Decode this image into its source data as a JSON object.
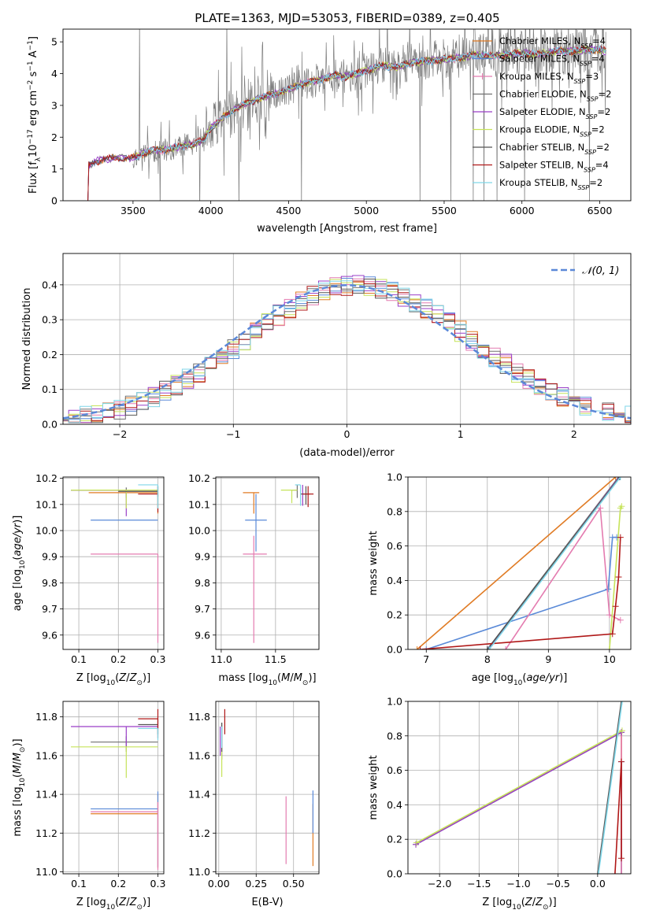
{
  "title": "PLATE=1363, MJD=53053, FIBERID=0389, z=0.405",
  "colors": {
    "Chabrier MILES": "#e07b24",
    "Salpeter MILES": "#5a8ad8",
    "Kroupa MILES": "#e47cb0",
    "Chabrier ELODIE": "#707070",
    "Salpeter ELODIE": "#9a3fc8",
    "Kroupa ELODIE": "#c6e35a",
    "Chabrier STELIB": "#555555",
    "Salpeter STELIB": "#b01818",
    "Kroupa STELIB": "#7fd6e8",
    "data": "#7f7f7f",
    "gauss": "#5b88d8"
  },
  "chart_data": [
    {
      "id": "spectrum",
      "type": "line",
      "xlabel": "wavelength [Angstrom, rest frame]",
      "ylabel": "Flux [f_λ 10^-17 erg cm^-2 s^-1 A^-1]",
      "xlim": [
        3050,
        6700
      ],
      "ylim": [
        0,
        5.4
      ],
      "xticks": [
        3500,
        4000,
        4500,
        5000,
        5500,
        6000,
        6500
      ],
      "yticks": [
        0,
        1,
        2,
        3,
        4,
        5
      ],
      "legend_position": "top-right",
      "legend": [
        "Chabrier MILES, N_SSP=4",
        "Salpeter MILES, N_SSP=4",
        "Kroupa MILES, N_SSP=3",
        "Chabrier ELODIE, N_SSP=2",
        "Salpeter ELODIE, N_SSP=2",
        "Kroupa ELODIE, N_SSP=2",
        "Chabrier STELIB, N_SSP=2",
        "Salpeter STELIB, N_SSP=4",
        "Kroupa STELIB, N_SSP=2"
      ],
      "continuum": {
        "x": [
          3210,
          3250,
          3300,
          3400,
          3500,
          3600,
          3700,
          3800,
          3900,
          3950,
          4000,
          4100,
          4200,
          4300,
          4400,
          4500,
          4600,
          4700,
          4800,
          4860,
          4900,
          5000,
          5100,
          5200,
          5300,
          5400,
          5500,
          5600,
          5700,
          5800,
          5900,
          6000,
          6100,
          6200,
          6300,
          6400,
          6500,
          6540
        ],
        "y": [
          1.1,
          1.2,
          1.3,
          1.35,
          1.35,
          1.55,
          1.6,
          1.7,
          1.8,
          1.9,
          2.3,
          2.7,
          3.0,
          3.2,
          3.35,
          3.5,
          3.7,
          3.8,
          3.95,
          3.9,
          3.95,
          4.1,
          4.25,
          4.2,
          4.35,
          4.4,
          4.45,
          4.5,
          4.6,
          4.55,
          4.6,
          4.65,
          4.6,
          4.7,
          4.7,
          4.75,
          4.75,
          4.7
        ]
      },
      "noise_region": [
        3500,
        6540
      ]
    },
    {
      "id": "residuals",
      "type": "bar",
      "style": "step histograms",
      "xlabel": "(data-model)/error",
      "ylabel": "Normed distribution",
      "xlim": [
        -2.5,
        2.5
      ],
      "ylim": [
        0,
        0.49
      ],
      "xticks": [
        -2,
        -1,
        0,
        1,
        2
      ],
      "yticks": [
        0.0,
        0.1,
        0.2,
        0.3,
        0.4
      ],
      "legend": [
        "𝒩(0, 1)"
      ],
      "legend_position": "top-right",
      "bin_width": 0.1,
      "reference": {
        "type": "normal",
        "mean": 0,
        "sigma": 1
      }
    },
    {
      "id": "age-vs-Z",
      "type": "scatter",
      "style": "error bars",
      "xlabel": "Z [log10(Z/Z_sun)]",
      "ylabel": "age [log10(age/yr)]",
      "xlim": [
        0.06,
        0.315
      ],
      "ylim": [
        9.545,
        10.205
      ],
      "xticks": [
        0.1,
        0.2,
        0.3
      ],
      "yticks": [
        9.6,
        9.7,
        9.8,
        9.9,
        10.0,
        10.1,
        10.2
      ],
      "points": [
        {
          "model": "Chabrier MILES",
          "x": 0.3,
          "y": 10.145,
          "xerr": [
            0.175,
            0
          ],
          "yerr": [
            0.08,
            0.0
          ]
        },
        {
          "model": "Salpeter MILES",
          "x": 0.3,
          "y": 10.04,
          "xerr": [
            0.17,
            0
          ],
          "yerr": [
            0,
            0
          ]
        },
        {
          "model": "Kroupa MILES",
          "x": 0.3,
          "y": 9.91,
          "xerr": [
            0.17,
            0
          ],
          "yerr": [
            0.34,
            0
          ]
        },
        {
          "model": "Chabrier ELODIE",
          "x": 0.22,
          "y": 10.155,
          "xerr": [
            0.14,
            0.08
          ],
          "yerr": [
            0.03,
            0.01
          ]
        },
        {
          "model": "Salpeter ELODIE",
          "x": 0.22,
          "y": 10.155,
          "xerr": [
            0.14,
            0.08
          ],
          "yerr": [
            0.1,
            0.0
          ]
        },
        {
          "model": "Kroupa ELODIE",
          "x": 0.22,
          "y": 10.155,
          "xerr": [
            0.14,
            0.08
          ],
          "yerr": [
            0.07,
            0.0
          ]
        },
        {
          "model": "Chabrier STELIB",
          "x": 0.3,
          "y": 10.15,
          "xerr": [
            0.1,
            0
          ],
          "yerr": [
            0.02,
            0.02
          ]
        },
        {
          "model": "Salpeter STELIB",
          "x": 0.3,
          "y": 10.14,
          "xerr": [
            0.05,
            0
          ],
          "yerr": [
            0.07,
            0.03
          ]
        },
        {
          "model": "Kroupa STELIB",
          "x": 0.3,
          "y": 10.175,
          "xerr": [
            0.05,
            0
          ],
          "yerr": [
            0.09,
            0.0
          ]
        }
      ]
    },
    {
      "id": "age-vs-mass",
      "type": "scatter",
      "style": "error bars",
      "xlabel": "mass [log10(M/M_sun)]",
      "ylabel": "",
      "xlim": [
        10.95,
        11.9
      ],
      "ylim": [
        9.545,
        10.205
      ],
      "xticks": [
        11.0,
        11.5
      ],
      "yticks": [
        9.6,
        9.7,
        9.8,
        9.9,
        10.0,
        10.1,
        10.2
      ],
      "points": [
        {
          "model": "Chabrier MILES",
          "x": 11.3,
          "y": 10.145,
          "xerr": [
            0.1,
            0.05
          ],
          "yerr": [
            0.08,
            0.0
          ]
        },
        {
          "model": "Salpeter MILES",
          "x": 11.32,
          "y": 10.04,
          "xerr": [
            0.1,
            0.1
          ],
          "yerr": [
            0.12,
            0.1
          ]
        },
        {
          "model": "Kroupa MILES",
          "x": 11.3,
          "y": 9.91,
          "xerr": [
            0.1,
            0.12
          ],
          "yerr": [
            0.34,
            0.07
          ]
        },
        {
          "model": "Chabrier ELODIE",
          "x": 11.7,
          "y": 10.155,
          "xerr": [
            0.05,
            0
          ],
          "yerr": [
            0.03,
            0.02
          ]
        },
        {
          "model": "Salpeter ELODIE",
          "x": 11.75,
          "y": 10.155,
          "xerr": [
            0,
            0
          ],
          "yerr": [
            0.06,
            0.02
          ]
        },
        {
          "model": "Kroupa ELODIE",
          "x": 11.65,
          "y": 10.155,
          "xerr": [
            0.1,
            0.05
          ],
          "yerr": [
            0.05,
            0.0
          ]
        },
        {
          "model": "Chabrier STELIB",
          "x": 11.78,
          "y": 10.14,
          "xerr": [
            0.05,
            0.04
          ],
          "yerr": [
            0.04,
            0.03
          ]
        },
        {
          "model": "Salpeter STELIB",
          "x": 11.8,
          "y": 10.14,
          "xerr": [
            0.05,
            0.05
          ],
          "yerr": [
            0.05,
            0.03
          ]
        },
        {
          "model": "Kroupa STELIB",
          "x": 11.73,
          "y": 10.175,
          "xerr": [
            0.05,
            0.0
          ],
          "yerr": [
            0.08,
            0.0
          ]
        }
      ]
    },
    {
      "id": "weight-vs-age",
      "type": "line",
      "style": "cumulative",
      "xlabel": "age [log10(age/yr)]",
      "ylabel": "mass weight",
      "xlim": [
        6.7,
        10.35
      ],
      "ylim": [
        0,
        1.0
      ],
      "xticks": [
        7,
        8,
        9,
        10
      ],
      "yticks": [
        0.0,
        0.2,
        0.4,
        0.6,
        0.8,
        1.0
      ],
      "series": [
        {
          "model": "Chabrier MILES",
          "x": [
            6.85,
            10.1
          ],
          "y": [
            0,
            1.0
          ]
        },
        {
          "model": "Salpeter MILES",
          "x": [
            7.0,
            9.98,
            10.05,
            10.12
          ],
          "y": [
            0,
            0.35,
            0.65,
            0.65
          ]
        },
        {
          "model": "Kroupa MILES",
          "x": [
            8.3,
            9.85,
            10.0,
            10.18
          ],
          "y": [
            0,
            0.82,
            0.2,
            0.17
          ]
        },
        {
          "model": "Chabrier ELODIE",
          "x": [
            8.0,
            10.15
          ],
          "y": [
            0,
            1.0
          ]
        },
        {
          "model": "Salpeter ELODIE",
          "x": [
            8.02,
            10.16
          ],
          "y": [
            0,
            1.0
          ]
        },
        {
          "model": "Kroupa ELODIE",
          "x": [
            10.0,
            10.18,
            10.2
          ],
          "y": [
            0,
            0.82,
            0.83
          ]
        },
        {
          "model": "Chabrier STELIB",
          "x": [
            8.0,
            10.17
          ],
          "y": [
            0,
            1.0
          ]
        },
        {
          "model": "Salpeter STELIB",
          "x": [
            6.9,
            10.05,
            10.1,
            10.15,
            10.18
          ],
          "y": [
            0,
            0.09,
            0.25,
            0.42,
            0.65
          ]
        },
        {
          "model": "Kroupa STELIB",
          "x": [
            8.03,
            10.18
          ],
          "y": [
            0,
            1.0
          ]
        }
      ]
    },
    {
      "id": "mass-vs-Z",
      "type": "scatter",
      "style": "error bars",
      "xlabel": "Z [log10(Z/Z_sun)]",
      "ylabel": "mass [log10(M/M_sun)]",
      "xlim": [
        0.06,
        0.315
      ],
      "ylim": [
        10.99,
        11.88
      ],
      "xticks": [
        0.1,
        0.2,
        0.3
      ],
      "yticks": [
        11.0,
        11.2,
        11.4,
        11.6,
        11.8
      ],
      "points": [
        {
          "model": "Chabrier MILES",
          "x": 0.3,
          "y": 11.3,
          "xerr": [
            0.17,
            0
          ],
          "yerr": [
            0.28,
            0.1
          ]
        },
        {
          "model": "Salpeter MILES",
          "x": 0.3,
          "y": 11.325,
          "xerr": [
            0.17,
            0
          ],
          "yerr": [
            0.3,
            0.09
          ]
        },
        {
          "model": "Kroupa MILES",
          "x": 0.3,
          "y": 11.31,
          "xerr": [
            0.17,
            0
          ],
          "yerr": [
            0.3,
            0.05
          ]
        },
        {
          "model": "Chabrier ELODIE",
          "x": 0.22,
          "y": 11.67,
          "xerr": [
            0.09,
            0.08
          ],
          "yerr": [
            0.05,
            0.03
          ]
        },
        {
          "model": "Salpeter ELODIE",
          "x": 0.22,
          "y": 11.75,
          "xerr": [
            0.14,
            0.08
          ],
          "yerr": [
            0.1,
            0.0
          ]
        },
        {
          "model": "Kroupa ELODIE",
          "x": 0.22,
          "y": 11.645,
          "xerr": [
            0.14,
            0.08
          ],
          "yerr": [
            0.16,
            0.0
          ]
        },
        {
          "model": "Chabrier STELIB",
          "x": 0.3,
          "y": 11.76,
          "xerr": [
            0.05,
            0
          ],
          "yerr": [
            0.05,
            0.03
          ]
        },
        {
          "model": "Salpeter STELIB",
          "x": 0.3,
          "y": 11.79,
          "xerr": [
            0.05,
            0
          ],
          "yerr": [
            0.1,
            0.05
          ]
        },
        {
          "model": "Kroupa STELIB",
          "x": 0.3,
          "y": 11.74,
          "xerr": [
            0.05,
            0
          ],
          "yerr": [
            0.06,
            0.0
          ]
        }
      ]
    },
    {
      "id": "mass-vs-EBV",
      "type": "scatter",
      "style": "error bars",
      "xlabel": "E(B-V)",
      "ylabel": "",
      "xlim": [
        -0.02,
        0.67
      ],
      "ylim": [
        10.99,
        11.88
      ],
      "xticks": [
        0.0,
        0.25,
        0.5
      ],
      "yticks": [
        11.0,
        11.2,
        11.4,
        11.6,
        11.8
      ],
      "points": [
        {
          "model": "Chabrier MILES",
          "x": 0.63,
          "y": 11.2,
          "xerr": [
            0,
            0
          ],
          "yerr": [
            0.17,
            0.15
          ]
        },
        {
          "model": "Salpeter MILES",
          "x": 0.63,
          "y": 11.3,
          "xerr": [
            0,
            0
          ],
          "yerr": [
            0.1,
            0.12
          ]
        },
        {
          "model": "Kroupa MILES",
          "x": 0.45,
          "y": 11.21,
          "xerr": [
            0,
            0
          ],
          "yerr": [
            0.17,
            0.18
          ]
        },
        {
          "model": "Chabrier ELODIE",
          "x": 0.02,
          "y": 11.68,
          "xerr": [
            0,
            0
          ],
          "yerr": [
            0.1,
            0.09
          ]
        },
        {
          "model": "Salpeter ELODIE",
          "x": 0.01,
          "y": 11.7,
          "xerr": [
            0,
            0
          ],
          "yerr": [
            0.1,
            0.05
          ]
        },
        {
          "model": "Kroupa ELODIE",
          "x": 0.02,
          "y": 11.6,
          "xerr": [
            0,
            0
          ],
          "yerr": [
            0.11,
            0.05
          ]
        },
        {
          "model": "Chabrier STELIB",
          "x": 0.02,
          "y": 11.7,
          "xerr": [
            0,
            0
          ],
          "yerr": [
            0.08,
            0.07
          ]
        },
        {
          "model": "Salpeter STELIB",
          "x": 0.04,
          "y": 11.78,
          "xerr": [
            0,
            0
          ],
          "yerr": [
            0.07,
            0.06
          ]
        },
        {
          "model": "Kroupa STELIB",
          "x": 0.02,
          "y": 11.7,
          "xerr": [
            0,
            0
          ],
          "yerr": [
            0.06,
            0.05
          ]
        }
      ]
    },
    {
      "id": "weight-vs-Z",
      "type": "line",
      "style": "cumulative",
      "xlabel": "Z [log10(Z/Z_sun)]",
      "ylabel": "mass weight",
      "xlim": [
        -2.4,
        0.42
      ],
      "ylim": [
        0,
        1.0
      ],
      "xticks": [
        -2.0,
        -1.5,
        -1.0,
        -0.5,
        0.0
      ],
      "yticks": [
        0.0,
        0.2,
        0.4,
        0.6,
        0.8,
        1.0
      ],
      "series": [
        {
          "model": "Chabrier MILES",
          "x": [
            0.3,
            0.3
          ],
          "y": [
            0,
            0.82
          ]
        },
        {
          "model": "Salpeter MILES",
          "x": [
            0.3,
            0.3
          ],
          "y": [
            0,
            0.65
          ]
        },
        {
          "model": "Kroupa MILES",
          "x": [
            0.3,
            0.3
          ],
          "y": [
            0,
            0.82
          ]
        },
        {
          "model": "Chabrier ELODIE",
          "x": [
            -2.3,
            0.3
          ],
          "y": [
            0.17,
            0.82
          ]
        },
        {
          "model": "Salpeter ELODIE",
          "x": [
            -2.3,
            0.3
          ],
          "y": [
            0.17,
            0.82
          ]
        },
        {
          "model": "Kroupa ELODIE",
          "x": [
            -2.29,
            0.31
          ],
          "y": [
            0.18,
            0.83
          ]
        },
        {
          "model": "Chabrier STELIB",
          "x": [
            0.0,
            0.3
          ],
          "y": [
            0,
            1.0
          ]
        },
        {
          "model": "Salpeter STELIB",
          "x": [
            0.22,
            0.3,
            0.3
          ],
          "y": [
            0,
            0.65,
            0.09
          ]
        },
        {
          "model": "Kroupa STELIB",
          "x": [
            0.01,
            0.31
          ],
          "y": [
            0,
            1.0
          ]
        }
      ]
    }
  ]
}
